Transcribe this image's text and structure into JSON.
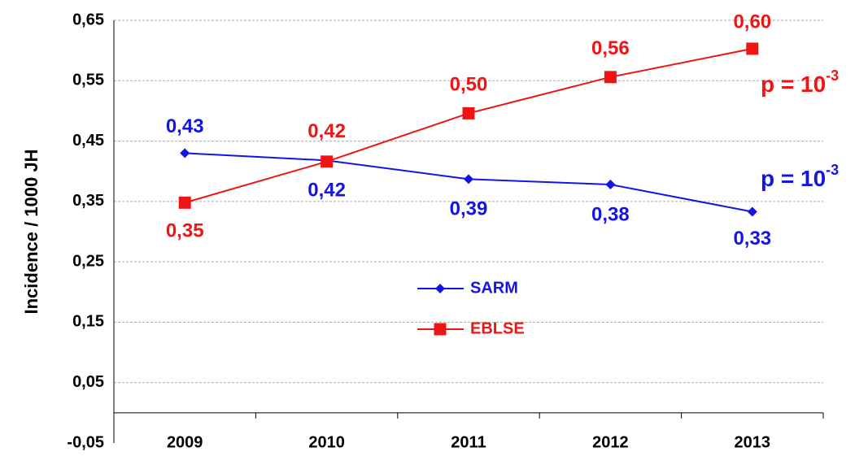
{
  "chart_data": {
    "type": "line",
    "y_label": "Incidence / 1000 JH",
    "categories": [
      "2009",
      "2010",
      "2011",
      "2012",
      "2013"
    ],
    "series": [
      {
        "name": "SARM",
        "color": "#1414e6",
        "marker": "diamond",
        "values": [
          0.43,
          0.418,
          0.387,
          0.378,
          0.333
        ],
        "value_labels": [
          "0,43",
          "0,42",
          "0,39",
          "0,38",
          "0,33"
        ]
      },
      {
        "name": "EBLSE",
        "color": "#f01414",
        "marker": "square",
        "values": [
          0.348,
          0.416,
          0.496,
          0.556,
          0.603
        ],
        "value_labels": [
          "0,35",
          "0,42",
          "0,50",
          "0,56",
          "0,60"
        ]
      }
    ],
    "annotations": [
      {
        "text": "p = 10",
        "sup": "-3",
        "color": "#f01414"
      },
      {
        "text": "p = 10",
        "sup": "-3",
        "color": "#1414e6"
      }
    ],
    "ylim": [
      -0.05,
      0.65
    ],
    "yticks": [
      {
        "value": -0.05,
        "label": "-0,05"
      },
      {
        "value": 0.05,
        "label": "0,05"
      },
      {
        "value": 0.15,
        "label": "0,15"
      },
      {
        "value": 0.25,
        "label": "0,25"
      },
      {
        "value": 0.35,
        "label": "0,35"
      },
      {
        "value": 0.45,
        "label": "0,45"
      },
      {
        "value": 0.55,
        "label": "0,55"
      },
      {
        "value": 0.65,
        "label": "0,65"
      }
    ],
    "grid": true,
    "legend": "center"
  }
}
